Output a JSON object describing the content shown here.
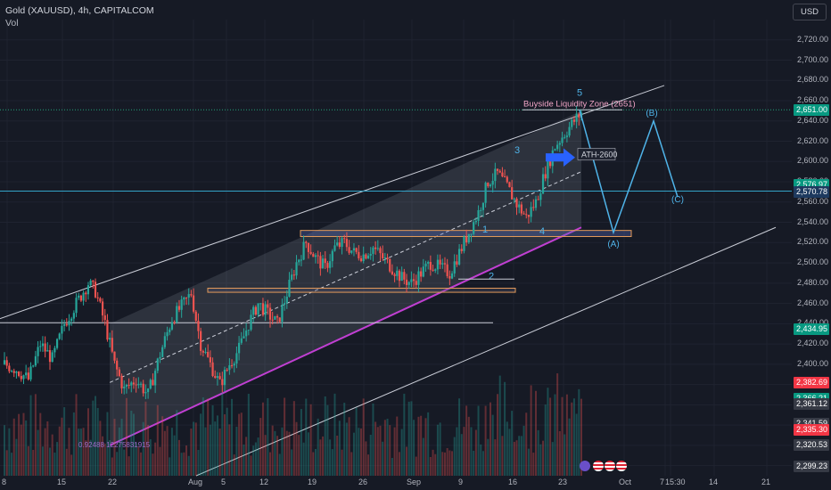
{
  "header": {
    "symbol_line": "Gold (XAUUSD), 4h, CAPITALCOM",
    "volume_label": "Vol"
  },
  "currency_button": "USD",
  "annotations": {
    "buyside_zone": "Buyside Liquidity Zone (2651)",
    "ath_label": "ATH-2600",
    "fib_text": "0.92488 12275831915"
  },
  "price_tags": [
    {
      "label": "2,651.00",
      "value": 2651,
      "color": "#089981"
    },
    {
      "label": "2,576.97",
      "value": 2576.97,
      "color": "#089981"
    },
    {
      "label": "2,570.78",
      "value": 2570.78,
      "color": "#1e3a5f"
    },
    {
      "label": "2,434.95",
      "value": 2434.95,
      "color": "#089981"
    },
    {
      "label": "2,382.69",
      "value": 2382.69,
      "color": "#f23645"
    },
    {
      "label": "2,366.21",
      "value": 2366.21,
      "color": "#089981"
    },
    {
      "label": "2,361.12",
      "value": 2361.12,
      "color": "#363a45"
    },
    {
      "label": "2,342.00",
      "value": 2342,
      "color": "#363a45"
    },
    {
      "label": "2,341.59",
      "value": 2341.59,
      "color": "#363a45"
    },
    {
      "label": "2,335.30",
      "value": 2335.3,
      "color": "#f23645"
    },
    {
      "label": "2,320.53",
      "value": 2320.53,
      "color": "#363a45"
    },
    {
      "label": "2,299.23",
      "value": 2299.23,
      "color": "#363a45"
    }
  ],
  "chart_data": {
    "type": "candlestick",
    "title": "Gold (XAUUSD), 4h, CAPITALCOM",
    "y_ticks": [
      2300,
      2320,
      2340,
      2360,
      2380,
      2400,
      2420,
      2440,
      2460,
      2480,
      2500,
      2520,
      2540,
      2560,
      2580,
      2600,
      2620,
      2640,
      2660,
      2680,
      2700,
      2720
    ],
    "y_tick_labels": [
      "2,300.00",
      "2,320.00",
      "2,340.00",
      "2,360.00",
      "2,380.00",
      "2,400.00",
      "2,420.00",
      "2,440.00",
      "2,460.00",
      "2,480.00",
      "2,500.00",
      "2,520.00",
      "2,540.00",
      "2,560.00",
      "2,580.00",
      "2,600.00",
      "2,620.00",
      "2,640.00",
      "2,660.00",
      "2,680.00",
      "2,700.00",
      "2,720.00"
    ],
    "x_tick_labels": [
      "8",
      "15",
      "22",
      "Aug",
      "5",
      "12",
      "19",
      "26",
      "Sep",
      "9",
      "16",
      "23",
      "Oct",
      "7",
      "15:30",
      "14",
      "21"
    ],
    "ylim": [
      2290,
      2740
    ],
    "price_anchors": [
      [
        0,
        2400
      ],
      [
        5,
        2395
      ],
      [
        10,
        2385
      ],
      [
        15,
        2420
      ],
      [
        20,
        2405
      ],
      [
        25,
        2440
      ],
      [
        30,
        2460
      ],
      [
        35,
        2480
      ],
      [
        38,
        2472
      ],
      [
        42,
        2440
      ],
      [
        46,
        2400
      ],
      [
        50,
        2375
      ],
      [
        55,
        2385
      ],
      [
        60,
        2370
      ],
      [
        65,
        2410
      ],
      [
        70,
        2445
      ],
      [
        75,
        2460
      ],
      [
        78,
        2470
      ],
      [
        82,
        2420
      ],
      [
        86,
        2400
      ],
      [
        90,
        2380
      ],
      [
        94,
        2400
      ],
      [
        98,
        2415
      ],
      [
        102,
        2440
      ],
      [
        106,
        2460
      ],
      [
        110,
        2450
      ],
      [
        114,
        2440
      ],
      [
        118,
        2470
      ],
      [
        122,
        2500
      ],
      [
        126,
        2520
      ],
      [
        130,
        2505
      ],
      [
        134,
        2495
      ],
      [
        138,
        2515
      ],
      [
        142,
        2520
      ],
      [
        146,
        2510
      ],
      [
        150,
        2508
      ],
      [
        154,
        2515
      ],
      [
        158,
        2505
      ],
      [
        162,
        2495
      ],
      [
        166,
        2485
      ],
      [
        170,
        2480
      ],
      [
        174,
        2490
      ],
      [
        178,
        2500
      ],
      [
        182,
        2495
      ],
      [
        186,
        2490
      ],
      [
        190,
        2510
      ],
      [
        194,
        2530
      ],
      [
        198,
        2550
      ],
      [
        202,
        2580
      ],
      [
        206,
        2588
      ],
      [
        210,
        2575
      ],
      [
        214,
        2558
      ],
      [
        218,
        2545
      ],
      [
        222,
        2560
      ],
      [
        226,
        2590
      ],
      [
        230,
        2615
      ],
      [
        234,
        2628
      ],
      [
        238,
        2640
      ],
      [
        241,
        2648
      ]
    ],
    "candles_total": 242,
    "elliott_wave_labels": [
      {
        "text": "1",
        "price": 2530
      },
      {
        "text": "2",
        "price": 2484
      },
      {
        "text": "3",
        "price": 2608
      },
      {
        "text": "4",
        "price": 2528
      },
      {
        "text": "5",
        "price": 2665
      }
    ],
    "projection": {
      "points": [
        [
          2651,
          0
        ],
        [
          2530,
          1
        ],
        [
          2640,
          2
        ],
        [
          2565,
          3
        ]
      ],
      "labels": [
        {
          "text": "(A)",
          "price": 2516
        },
        {
          "text": "(B)",
          "price": 2645
        },
        {
          "text": "(C)",
          "price": 2560
        }
      ]
    },
    "horizontal_levels": [
      {
        "price": 2651,
        "label": "Buyside Liquidity Zone (2651)"
      },
      {
        "price": 2570.78
      },
      {
        "price": 2441
      }
    ],
    "zones": [
      {
        "from": 2526,
        "to": 2532
      },
      {
        "from": 2471,
        "to": 2475
      }
    ]
  }
}
